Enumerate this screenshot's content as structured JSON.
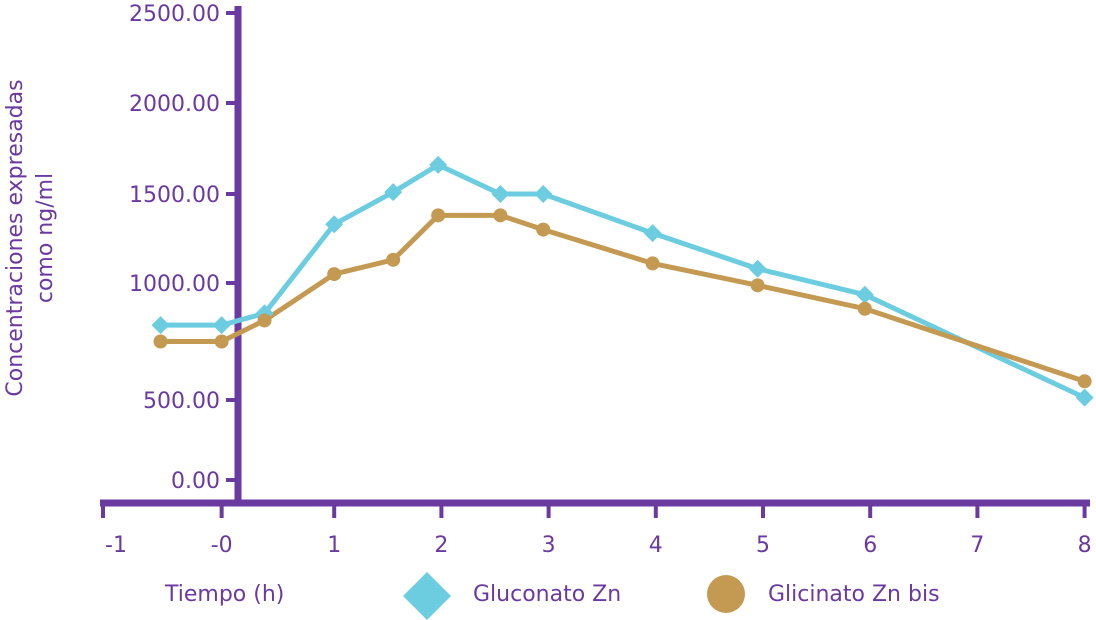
{
  "chart_data": {
    "type": "line",
    "title": "",
    "xlabel": "Tiempo (h)",
    "ylabel_lines": [
      "Concentraciones expresadas",
      "como ng/ml"
    ],
    "x_tick_labels": [
      "-1",
      "-0",
      "1",
      "2",
      "3",
      "4",
      "5",
      "6",
      "7",
      "8"
    ],
    "y_tick_labels": [
      "0.00",
      "500.00",
      "1000.00",
      "1500.00",
      "2000.00",
      "2500.00"
    ],
    "series": [
      {
        "name": "Gluconato Zn",
        "color": "#6ccde0",
        "marker": "diamond",
        "x": [
          -0.62,
          -0.05,
          0.35,
          1.0,
          1.55,
          1.97,
          2.55,
          2.95,
          3.97,
          4.95,
          5.95,
          8.0
        ],
        "y": [
          820,
          820,
          870,
          1330,
          1510,
          1660,
          1500,
          1500,
          1280,
          1080,
          950,
          510
        ]
      },
      {
        "name": "Glicinato Zn bis",
        "color": "#c49a52",
        "marker": "circle",
        "x": [
          -0.62,
          -0.05,
          0.35,
          1.0,
          1.55,
          1.97,
          2.55,
          2.95,
          3.97,
          4.95,
          5.95,
          8.0
        ],
        "y": [
          750,
          750,
          840,
          1050,
          1130,
          1380,
          1380,
          1300,
          1110,
          990,
          890,
          580
        ]
      }
    ],
    "axis_color": "#6b3aa0",
    "grid": false,
    "legend_position": "bottom"
  }
}
